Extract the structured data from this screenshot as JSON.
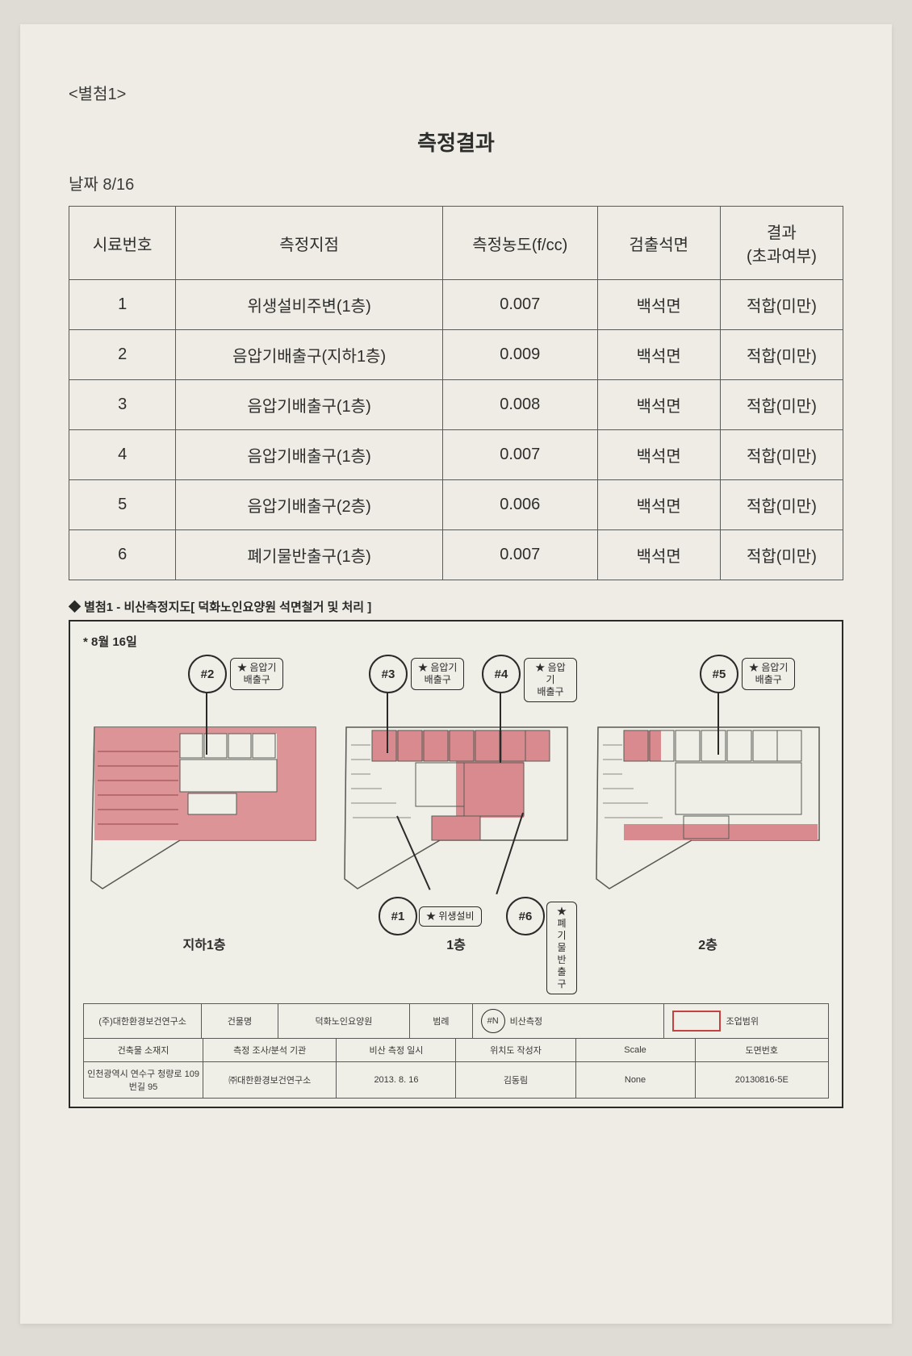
{
  "attachment_label": "<별첨1>",
  "title": "측정결과",
  "date_line": "날짜 8/16",
  "table": {
    "headers": {
      "no": "시료번호",
      "point": "측정지점",
      "conc": "측정농도(f/cc)",
      "detected": "검출석면",
      "result": "결과\n(초과여부)"
    },
    "rows": [
      {
        "no": "1",
        "point": "위생설비주변(1층)",
        "conc": "0.007",
        "detected": "백석면",
        "result": "적합(미만)"
      },
      {
        "no": "2",
        "point": "음압기배출구(지하1층)",
        "conc": "0.009",
        "detected": "백석면",
        "result": "적합(미만)"
      },
      {
        "no": "3",
        "point": "음압기배출구(1층)",
        "conc": "0.008",
        "detected": "백석면",
        "result": "적합(미만)"
      },
      {
        "no": "4",
        "point": "음압기배출구(1층)",
        "conc": "0.007",
        "detected": "백석면",
        "result": "적합(미만)"
      },
      {
        "no": "5",
        "point": "음압기배출구(2층)",
        "conc": "0.006",
        "detected": "백석면",
        "result": "적합(미만)"
      },
      {
        "no": "6",
        "point": "폐기물반출구(1층)",
        "conc": "0.007",
        "detected": "백석면",
        "result": "적합(미만)"
      }
    ]
  },
  "map": {
    "heading": "◆ 별첨1 - 비산측정지도[ 덕화노인요양원 석면철거 및 처리 ]",
    "date": "* 8월 16일",
    "floor_labels": {
      "b1": "지하1층",
      "f1": "1층",
      "f2": "2층"
    },
    "markers": {
      "m1": {
        "id": "#1",
        "tag": "★ 위생설비"
      },
      "m2": {
        "id": "#2",
        "tag": "★ 음압기\n배출구"
      },
      "m3": {
        "id": "#3",
        "tag": "★ 음압기\n배출구"
      },
      "m4": {
        "id": "#4",
        "tag": "★ 음압기\n배출구"
      },
      "m5": {
        "id": "#5",
        "tag": "★ 음압기\n배출구"
      },
      "m6": {
        "id": "#6",
        "tag": "★ 폐기물\n반출구"
      }
    },
    "colors": {
      "hatch": "#d98a8e",
      "outline": "#595955",
      "frame": "#2a2a29",
      "legend_red": "#c44242"
    },
    "legend": {
      "company": "(주)대한환경보건연구소",
      "building_label": "건물명",
      "building_name": "덕화노인요양원",
      "remark_label": "범례",
      "marker_symbol": "#N",
      "marker_meaning": "비산측정",
      "area_meaning": "조업범위"
    },
    "titleblock": {
      "h": {
        "addr": "건축물 소재지",
        "org": "측정 조사/분석 기관",
        "date": "비산 측정 일시",
        "author": "위치도 작성자",
        "scale": "Scale",
        "docno": "도면번호"
      },
      "v": {
        "addr": "인천광역시 연수구 청량로 109번길 95",
        "org": "㈜대한환경보건연구소",
        "date": "2013. 8. 16",
        "author": "김동림",
        "scale": "None",
        "docno": "20130816-5E"
      }
    }
  }
}
